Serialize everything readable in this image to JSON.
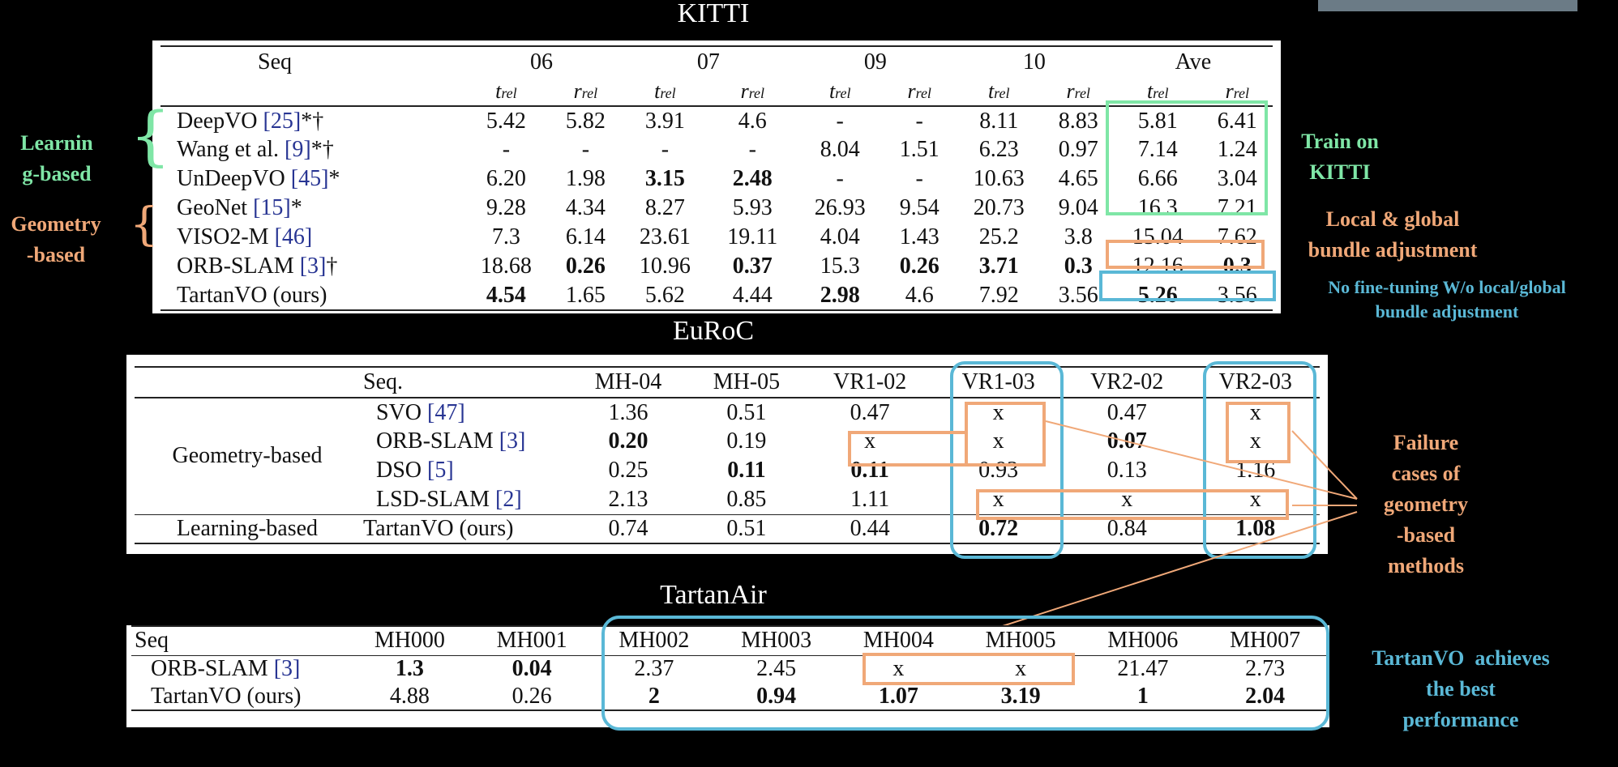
{
  "kitti": {
    "title": "KITTI",
    "seq_label": "Seq",
    "groups": [
      "06",
      "07",
      "09",
      "10",
      "Ave"
    ],
    "metric_t": "t",
    "metric_r": "r",
    "metric_sub": "rel",
    "rows": [
      {
        "method": "DeepVO ",
        "ref": "[25]",
        "suffix": "*†",
        "values": [
          "5.42",
          "5.82",
          "3.91",
          "4.6",
          "-",
          "-",
          "8.11",
          "8.83",
          "5.81",
          "6.41"
        ],
        "bold": []
      },
      {
        "method": "Wang et al. ",
        "ref": "[9]",
        "suffix": "*†",
        "values": [
          "-",
          "-",
          "-",
          "-",
          "8.04",
          "1.51",
          "6.23",
          "0.97",
          "7.14",
          "1.24"
        ],
        "bold": []
      },
      {
        "method": "UnDeepVO ",
        "ref": "[45]",
        "suffix": "*",
        "values": [
          "6.20",
          "1.98",
          "3.15",
          "2.48",
          "-",
          "-",
          "10.63",
          "4.65",
          "6.66",
          "3.04"
        ],
        "bold": [
          2,
          3
        ]
      },
      {
        "method": "GeoNet ",
        "ref": "[15]",
        "suffix": "*",
        "values": [
          "9.28",
          "4.34",
          "8.27",
          "5.93",
          "26.93",
          "9.54",
          "20.73",
          "9.04",
          "16.3",
          "7.21"
        ],
        "bold": []
      },
      {
        "method": "VISO2-M ",
        "ref": "[46]",
        "suffix": "",
        "values": [
          "7.3",
          "6.14",
          "23.61",
          "19.11",
          "4.04",
          "1.43",
          "25.2",
          "3.8",
          "15.04",
          "7.62"
        ],
        "bold": []
      },
      {
        "method": "ORB-SLAM ",
        "ref": "[3]",
        "suffix": "†",
        "values": [
          "18.68",
          "0.26",
          "10.96",
          "0.37",
          "15.3",
          "0.26",
          "3.71",
          "0.3",
          "12.16",
          "0.3"
        ],
        "bold": [
          1,
          3,
          5,
          6,
          7,
          9
        ]
      },
      {
        "method": "TartanVO (ours)",
        "ref": "",
        "suffix": "",
        "values": [
          "4.54",
          "1.65",
          "5.62",
          "4.44",
          "2.98",
          "4.6",
          "7.92",
          "3.56",
          "5.26",
          "3.56"
        ],
        "bold": [
          0,
          4,
          8
        ]
      }
    ],
    "annotations": {
      "learning_based": "Learnin\ng-based",
      "geometry_based": "Geometry\n-based",
      "train_on_kitti": "Train on\nKITTI",
      "local_global_ba": "Local & global\nbundle adjustment",
      "no_finetuning": "No fine-tuning W/o local/global\nbundle adjustment"
    }
  },
  "euroc": {
    "title": "EuRoC",
    "seq_label": "Seq.",
    "columns": [
      "MH-04",
      "MH-05",
      "VR1-02",
      "VR1-03",
      "VR2-02",
      "VR2-03"
    ],
    "group_geometry": "Geometry-based",
    "group_learning": "Learning-based",
    "rows": [
      {
        "method": "SVO ",
        "ref": "[47]",
        "values": [
          "1.36",
          "0.51",
          "0.47",
          "x",
          "0.47",
          "x"
        ],
        "bold": []
      },
      {
        "method": "ORB-SLAM ",
        "ref": "[3]",
        "values": [
          "0.20",
          "0.19",
          "x",
          "x",
          "0.07",
          "x"
        ],
        "bold": [
          0,
          4
        ]
      },
      {
        "method": "DSO ",
        "ref": "[5]",
        "values": [
          "0.25",
          "0.11",
          "0.11",
          "0.93",
          "0.13",
          "1.16"
        ],
        "bold": [
          1,
          2
        ]
      },
      {
        "method": "LSD-SLAM ",
        "ref": "[2]",
        "values": [
          "2.13",
          "0.85",
          "1.11",
          "x",
          "x",
          "x"
        ],
        "bold": []
      },
      {
        "method": "TartanVO (ours)",
        "ref": "",
        "values": [
          "0.74",
          "0.51",
          "0.44",
          "0.72",
          "0.84",
          "1.08"
        ],
        "bold": [
          3,
          5
        ]
      }
    ],
    "annotations": {
      "failure": "Failure\ncases of\ngeometry\n-based\nmethods"
    }
  },
  "tartanair": {
    "title": "TartanAir",
    "seq_label": "Seq",
    "columns": [
      "MH000",
      "MH001",
      "MH002",
      "MH003",
      "MH004",
      "MH005",
      "MH006",
      "MH007"
    ],
    "rows": [
      {
        "method": "ORB-SLAM ",
        "ref": "[3]",
        "values": [
          "1.3",
          "0.04",
          "2.37",
          "2.45",
          "x",
          "x",
          "21.47",
          "2.73"
        ],
        "bold": [
          0,
          1
        ]
      },
      {
        "method": "TartanVO (ours)",
        "ref": "",
        "values": [
          "4.88",
          "0.26",
          "2",
          "0.94",
          "1.07",
          "3.19",
          "1",
          "2.04"
        ],
        "bold": [
          2,
          3,
          4,
          5,
          6,
          7
        ]
      }
    ],
    "annotations": {
      "best": "TartanVO  achieves\nthe best\nperformance"
    }
  },
  "colors": {
    "green": "#7fe6a6",
    "orange": "#f0a878",
    "blue": "#5ab8d6"
  }
}
